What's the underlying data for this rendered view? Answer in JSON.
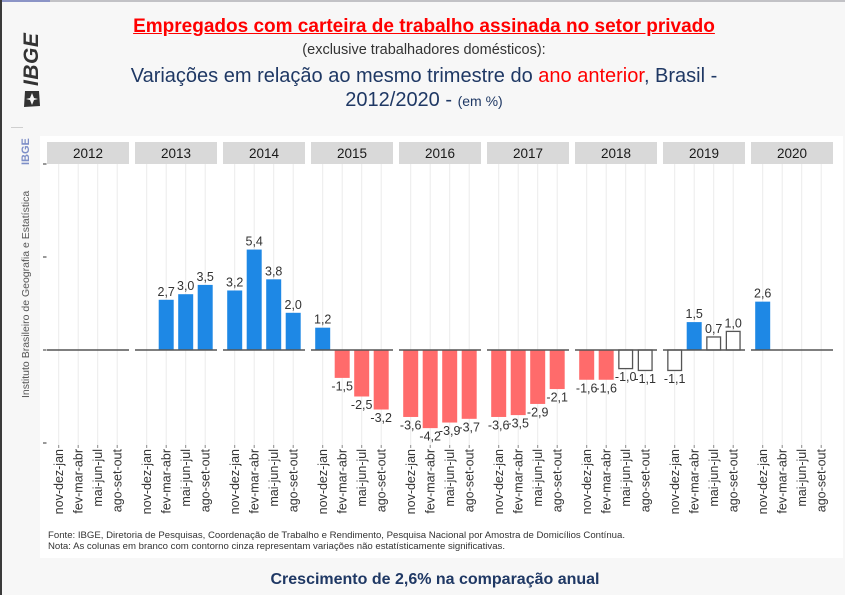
{
  "window": {
    "logo": "IBGE",
    "sidebar_short": "IBGE",
    "sidebar_full": "Instituto Brasileiro de Geografia e Estatística"
  },
  "header": {
    "title": "Empregados com carteira de trabalho assinada no setor privado",
    "subtitle": "(exclusive trabalhadores domésticos):",
    "line3_pre": "Variações em relação ao mesmo trimestre do ",
    "line3_highlight": "ano anterior",
    "line3_post": ", Brasil -",
    "line4_main": "2012/2020 - ",
    "line4_unit": "(em %)"
  },
  "colors": {
    "title_red": "#ff0000",
    "navy": "#1f3864",
    "positive_significant": "#1e88e5",
    "negative_significant": "#ff6b6b",
    "not_significant_fill": "#ffffff",
    "not_significant_stroke": "#555555",
    "strip_background": "#d9d9d9"
  },
  "chart_data": {
    "type": "bar",
    "title": "Empregados com carteira de trabalho assinada no setor privado",
    "subtitle": "Variações em relação ao mesmo trimestre do ano anterior, Brasil - 2012/2020 - (em %)",
    "xlabel": "",
    "ylabel": "",
    "ylim": [
      -5.1,
      10
    ],
    "yticks": [
      -5,
      0,
      5,
      10
    ],
    "grid": "vertical",
    "legend": "none",
    "facet_by": "year",
    "categories": [
      "nov-dez-jan",
      "fev-mar-abr",
      "mai-jun-jul",
      "ago-set-out"
    ],
    "facets": [
      {
        "year": "2012",
        "values": [
          null,
          null,
          null,
          null
        ],
        "labels": [
          "",
          "",
          "",
          ""
        ],
        "significant": [
          false,
          false,
          false,
          false
        ]
      },
      {
        "year": "2013",
        "values": [
          null,
          2.7,
          3.0,
          3.5
        ],
        "labels": [
          "",
          "2,7",
          "3,0",
          "3,5"
        ],
        "significant": [
          false,
          true,
          true,
          true
        ]
      },
      {
        "year": "2014",
        "values": [
          3.2,
          5.4,
          3.8,
          2.0
        ],
        "labels": [
          "3,2",
          "5,4",
          "3,8",
          "2,0"
        ],
        "significant": [
          true,
          true,
          true,
          true
        ]
      },
      {
        "year": "2015",
        "values": [
          1.2,
          -1.5,
          -2.5,
          -3.2
        ],
        "labels": [
          "1,2",
          "-1,5",
          "-2,5",
          "-3,2"
        ],
        "significant": [
          true,
          true,
          true,
          true
        ]
      },
      {
        "year": "2016",
        "values": [
          -3.6,
          -4.2,
          -3.9,
          -3.7
        ],
        "labels": [
          "-3,6",
          "-4,2",
          "-3,9",
          "-3,7"
        ],
        "significant": [
          true,
          true,
          true,
          true
        ]
      },
      {
        "year": "2017",
        "values": [
          -3.6,
          -3.5,
          -2.9,
          -2.1
        ],
        "labels": [
          "-3,6",
          "-3,5",
          "-2,9",
          "-2,1"
        ],
        "significant": [
          true,
          true,
          true,
          true
        ]
      },
      {
        "year": "2018",
        "values": [
          -1.6,
          -1.6,
          -1.0,
          -1.1
        ],
        "labels": [
          "-1,6",
          "-1,6",
          "-1,0",
          "-1,1"
        ],
        "significant": [
          true,
          true,
          false,
          false
        ]
      },
      {
        "year": "2019",
        "values": [
          -1.1,
          1.5,
          0.7,
          1.0
        ],
        "labels": [
          "-1,1",
          "1,5",
          "0,7",
          "1,0"
        ],
        "significant": [
          false,
          true,
          false,
          false
        ]
      },
      {
        "year": "2020",
        "values": [
          2.6,
          null,
          null,
          null
        ],
        "labels": [
          "2,6",
          "",
          "",
          ""
        ],
        "significant": [
          true,
          false,
          false,
          false
        ]
      }
    ]
  },
  "footer": {
    "source": "Fonte: IBGE, Diretoria de Pesquisas, Coordenação de Trabalho e Rendimento, Pesquisa Nacional por Amostra de Domicílios Contínua.",
    "note": "Nota: As colunas em branco com contorno cinza representam variações não estatísticamente significativas.",
    "caption": "Crescimento de 2,6% na comparação anual"
  }
}
